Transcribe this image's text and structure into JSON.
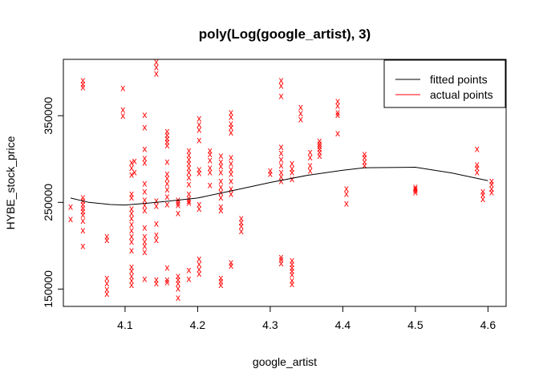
{
  "chart_data": {
    "type": "scatter",
    "title": "poly(Log(google_artist), 3)",
    "xlabel": "google_artist",
    "ylabel": "HYBE_stock_price",
    "xlim": [
      4.015,
      4.625
    ],
    "ylim": [
      130000,
      415000
    ],
    "x_ticks": [
      4.1,
      4.2,
      4.3,
      4.4,
      4.5,
      4.6
    ],
    "y_ticks": [
      150000,
      250000,
      350000
    ],
    "legend": {
      "position": "top-right",
      "entries": [
        {
          "label": "fitted points",
          "color": "#000000"
        },
        {
          "label": "actual points",
          "color": "#ff0000"
        }
      ]
    },
    "fitted": {
      "name": "fitted points",
      "color": "#000000",
      "x": [
        4.025,
        4.05,
        4.08,
        4.1,
        4.13,
        4.16,
        4.2,
        4.25,
        4.3,
        4.35,
        4.4,
        4.43,
        4.5,
        4.55,
        4.6
      ],
      "y": [
        255000,
        250000,
        247500,
        247000,
        249000,
        251500,
        255000,
        264000,
        273000,
        281000,
        287000,
        290000,
        290500,
        284000,
        275000
      ]
    },
    "actual": {
      "name": "actual points",
      "color": "#ff0000",
      "marker": "x",
      "points": [
        [
          4.025,
          245000
        ],
        [
          4.025,
          231000
        ],
        [
          4.042,
          391000
        ],
        [
          4.042,
          387000
        ],
        [
          4.042,
          383000
        ],
        [
          4.042,
          256000
        ],
        [
          4.042,
          252000
        ],
        [
          4.042,
          248000
        ],
        [
          4.042,
          244000
        ],
        [
          4.042,
          240000
        ],
        [
          4.042,
          236000
        ],
        [
          4.042,
          229000
        ],
        [
          4.042,
          218000
        ],
        [
          4.042,
          200000
        ],
        [
          4.075,
          211000
        ],
        [
          4.075,
          207000
        ],
        [
          4.075,
          163000
        ],
        [
          4.075,
          157000
        ],
        [
          4.075,
          150000
        ],
        [
          4.075,
          145000
        ],
        [
          4.097,
          382000
        ],
        [
          4.097,
          357000
        ],
        [
          4.097,
          350000
        ],
        [
          4.109,
          296000
        ],
        [
          4.109,
          290000
        ],
        [
          4.109,
          282000
        ],
        [
          4.109,
          260000
        ],
        [
          4.109,
          256000
        ],
        [
          4.109,
          243000
        ],
        [
          4.109,
          238000
        ],
        [
          4.109,
          232000
        ],
        [
          4.109,
          225000
        ],
        [
          4.109,
          218000
        ],
        [
          4.109,
          211000
        ],
        [
          4.109,
          205000
        ],
        [
          4.109,
          195000
        ],
        [
          4.109,
          176000
        ],
        [
          4.109,
          171000
        ],
        [
          4.109,
          165000
        ],
        [
          4.109,
          160000
        ],
        [
          4.109,
          155000
        ],
        [
          4.113,
          298000
        ],
        [
          4.113,
          285000
        ],
        [
          4.127,
          351000
        ],
        [
          4.127,
          337000
        ],
        [
          4.127,
          312000
        ],
        [
          4.127,
          301000
        ],
        [
          4.127,
          296000
        ],
        [
          4.127,
          272000
        ],
        [
          4.127,
          263000
        ],
        [
          4.127,
          253000
        ],
        [
          4.127,
          247000
        ],
        [
          4.127,
          241000
        ],
        [
          4.127,
          221000
        ],
        [
          4.127,
          211000
        ],
        [
          4.127,
          205000
        ],
        [
          4.127,
          200000
        ],
        [
          4.127,
          193000
        ],
        [
          4.127,
          162000
        ],
        [
          4.143,
          412000
        ],
        [
          4.143,
          406000
        ],
        [
          4.143,
          399000
        ],
        [
          4.143,
          252000
        ],
        [
          4.143,
          246000
        ],
        [
          4.143,
          226000
        ],
        [
          4.143,
          213000
        ],
        [
          4.143,
          207000
        ],
        [
          4.143,
          161000
        ],
        [
          4.143,
          157000
        ],
        [
          4.158,
          332000
        ],
        [
          4.158,
          328000
        ],
        [
          4.158,
          324000
        ],
        [
          4.158,
          320000
        ],
        [
          4.158,
          316000
        ],
        [
          4.158,
          297000
        ],
        [
          4.158,
          283000
        ],
        [
          4.158,
          278000
        ],
        [
          4.158,
          272000
        ],
        [
          4.158,
          265000
        ],
        [
          4.158,
          257000
        ],
        [
          4.158,
          248000
        ],
        [
          4.158,
          175000
        ],
        [
          4.158,
          161000
        ],
        [
          4.158,
          158000
        ],
        [
          4.173,
          253000
        ],
        [
          4.173,
          250000
        ],
        [
          4.173,
          247000
        ],
        [
          4.173,
          238000
        ],
        [
          4.173,
          165000
        ],
        [
          4.173,
          161000
        ],
        [
          4.173,
          157000
        ],
        [
          4.173,
          151000
        ],
        [
          4.173,
          140000
        ],
        [
          4.188,
          310000
        ],
        [
          4.188,
          305000
        ],
        [
          4.188,
          300000
        ],
        [
          4.188,
          295000
        ],
        [
          4.188,
          290000
        ],
        [
          4.188,
          285000
        ],
        [
          4.188,
          279000
        ],
        [
          4.188,
          271000
        ],
        [
          4.188,
          260000
        ],
        [
          4.188,
          255000
        ],
        [
          4.188,
          252000
        ],
        [
          4.188,
          250000
        ],
        [
          4.188,
          172000
        ],
        [
          4.188,
          162000
        ],
        [
          4.202,
          347000
        ],
        [
          4.202,
          340000
        ],
        [
          4.202,
          334000
        ],
        [
          4.202,
          322000
        ],
        [
          4.202,
          288000
        ],
        [
          4.202,
          284000
        ],
        [
          4.202,
          248000
        ],
        [
          4.202,
          243000
        ],
        [
          4.202,
          185000
        ],
        [
          4.202,
          179000
        ],
        [
          4.202,
          173000
        ],
        [
          4.202,
          168000
        ],
        [
          4.217,
          310000
        ],
        [
          4.217,
          306000
        ],
        [
          4.217,
          299000
        ],
        [
          4.217,
          290000
        ],
        [
          4.217,
          285000
        ],
        [
          4.217,
          270000
        ],
        [
          4.232,
          304000
        ],
        [
          4.232,
          297000
        ],
        [
          4.232,
          292000
        ],
        [
          4.232,
          285000
        ],
        [
          4.232,
          275000
        ],
        [
          4.232,
          268000
        ],
        [
          4.232,
          262000
        ],
        [
          4.232,
          256000
        ],
        [
          4.232,
          245000
        ],
        [
          4.232,
          241000
        ],
        [
          4.232,
          163000
        ],
        [
          4.232,
          159000
        ],
        [
          4.232,
          155000
        ],
        [
          4.246,
          354000
        ],
        [
          4.246,
          349000
        ],
        [
          4.246,
          341000
        ],
        [
          4.246,
          337000
        ],
        [
          4.246,
          331000
        ],
        [
          4.246,
          302000
        ],
        [
          4.246,
          295000
        ],
        [
          4.246,
          288000
        ],
        [
          4.246,
          283000
        ],
        [
          4.246,
          275000
        ],
        [
          4.246,
          266000
        ],
        [
          4.246,
          260000
        ],
        [
          4.246,
          181000
        ],
        [
          4.246,
          177000
        ],
        [
          4.26,
          232000
        ],
        [
          4.26,
          227000
        ],
        [
          4.26,
          223000
        ],
        [
          4.26,
          217000
        ],
        [
          4.3,
          287000
        ],
        [
          4.3,
          283000
        ],
        [
          4.315,
          391000
        ],
        [
          4.315,
          385000
        ],
        [
          4.315,
          373000
        ],
        [
          4.315,
          314000
        ],
        [
          4.315,
          307000
        ],
        [
          4.315,
          300000
        ],
        [
          4.315,
          293000
        ],
        [
          4.315,
          285000
        ],
        [
          4.315,
          280000
        ],
        [
          4.315,
          275000
        ],
        [
          4.315,
          187000
        ],
        [
          4.315,
          184000
        ],
        [
          4.315,
          180000
        ],
        [
          4.33,
          295000
        ],
        [
          4.33,
          289000
        ],
        [
          4.33,
          285000
        ],
        [
          4.33,
          277000
        ],
        [
          4.33,
          183000
        ],
        [
          4.33,
          179000
        ],
        [
          4.33,
          175000
        ],
        [
          4.33,
          171000
        ],
        [
          4.33,
          167000
        ],
        [
          4.33,
          160000
        ],
        [
          4.33,
          156000
        ],
        [
          4.342,
          360000
        ],
        [
          4.342,
          353000
        ],
        [
          4.342,
          346000
        ],
        [
          4.355,
          308000
        ],
        [
          4.355,
          302000
        ],
        [
          4.355,
          293000
        ],
        [
          4.355,
          287000
        ],
        [
          4.368,
          321000
        ],
        [
          4.368,
          318000
        ],
        [
          4.368,
          315000
        ],
        [
          4.368,
          312000
        ],
        [
          4.368,
          308000
        ],
        [
          4.368,
          304000
        ],
        [
          4.393,
          367000
        ],
        [
          4.393,
          362000
        ],
        [
          4.393,
          354000
        ],
        [
          4.393,
          351000
        ],
        [
          4.393,
          330000
        ],
        [
          4.405,
          266000
        ],
        [
          4.405,
          260000
        ],
        [
          4.405,
          249000
        ],
        [
          4.43,
          306000
        ],
        [
          4.43,
          302000
        ],
        [
          4.43,
          297000
        ],
        [
          4.43,
          293000
        ],
        [
          4.5,
          268000
        ],
        [
          4.5,
          266000
        ],
        [
          4.5,
          264000
        ],
        [
          4.5,
          262000
        ],
        [
          4.585,
          312000
        ],
        [
          4.585,
          294000
        ],
        [
          4.585,
          290000
        ],
        [
          4.585,
          285000
        ],
        [
          4.593,
          263000
        ],
        [
          4.593,
          259000
        ],
        [
          4.593,
          254000
        ],
        [
          4.605,
          275000
        ],
        [
          4.605,
          271000
        ],
        [
          4.605,
          266000
        ],
        [
          4.605,
          262000
        ]
      ]
    }
  }
}
